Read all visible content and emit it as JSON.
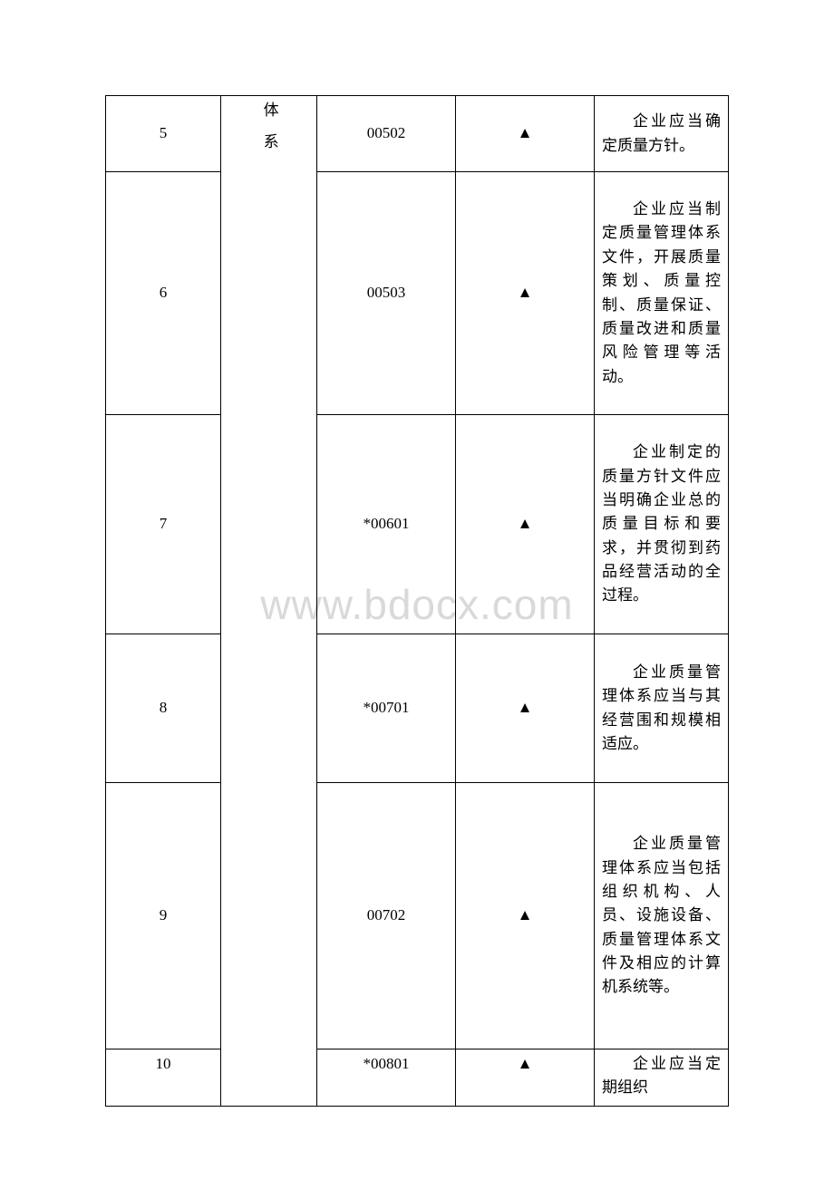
{
  "watermark": "www.bdocx.com",
  "marker_symbol": "▲",
  "column2_label": "体系",
  "rows": [
    {
      "num": "5",
      "code": "00502",
      "desc": "企业应当确定质量方针。"
    },
    {
      "num": "6",
      "code": "00503",
      "desc": "企业应当制定质量管理体系文件，开展质量策划、质量控制、质量保证、质量改进和质量风险管理等活动。"
    },
    {
      "num": "7",
      "code": "*00601",
      "desc": "企业制定的质量方针文件应当明确企业总的质量目标和要求，并贯彻到药品经营活动的全过程。"
    },
    {
      "num": "8",
      "code": "*00701",
      "desc": "企业质量管理体系应当与其经营围和规模相适应。"
    },
    {
      "num": "9",
      "code": "00702",
      "desc": "企业质量管理体系应当包括组织机构、人员、设施设备、质量管理体系文件及相应的计算机系统等。"
    },
    {
      "num": "10",
      "code": "*00801",
      "desc": "企业应当定期组织"
    }
  ]
}
